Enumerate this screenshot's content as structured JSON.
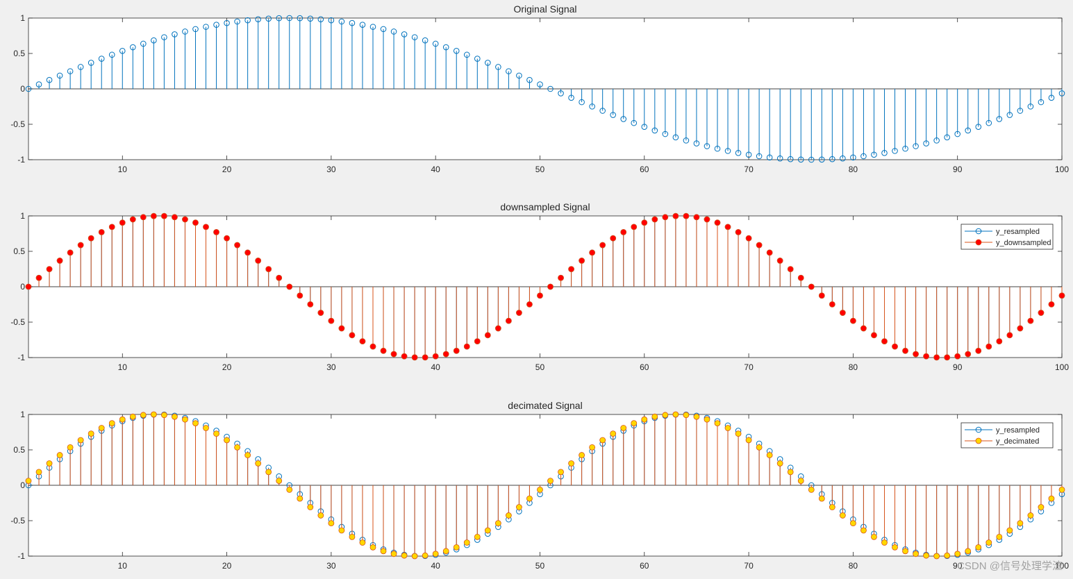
{
  "figure": {
    "background": "#f0f0f0",
    "axes_color": "#262626",
    "watermark": "CSDN @信号处理学渣"
  },
  "colors": {
    "blue": "#0072bd",
    "orange": "#d95319",
    "red": "#ff0000",
    "yellow": "#ffd700"
  },
  "chart_data": [
    {
      "type": "stem",
      "title": "Original Signal",
      "xlim": [
        1,
        100
      ],
      "ylim": [
        -1,
        1
      ],
      "xticks": [
        10,
        20,
        30,
        40,
        50,
        60,
        70,
        80,
        90,
        100
      ],
      "yticks": [
        1,
        0.5,
        0,
        -0.5,
        -1
      ],
      "x": "1..100",
      "series": [
        {
          "values_formula": "sin(2*pi*(n-1)/100), n = 1..100",
          "values_first_10": [
            0,
            0.063,
            0.125,
            0.187,
            0.249,
            0.309,
            0.368,
            0.426,
            0.482,
            0.536
          ],
          "marker": "open-circle",
          "color": "blue"
        }
      ],
      "legend": null
    },
    {
      "type": "stem",
      "title": "downsampled Signal",
      "xlim": [
        1,
        100
      ],
      "ylim": [
        -1,
        1
      ],
      "xticks": [
        10,
        20,
        30,
        40,
        50,
        60,
        70,
        80,
        90,
        100
      ],
      "yticks": [
        1,
        0.5,
        0,
        -0.5,
        -1
      ],
      "x": "1..100",
      "series": [
        {
          "name": "y_resampled",
          "values_formula": "sin(2*pi*(n-1)/50), n = 1..100",
          "marker": "open-circle",
          "color": "blue"
        },
        {
          "name": "y_downsampled",
          "values_formula": "sin(2*pi*(n-1)/50), n = 1..100",
          "marker": "filled-circle",
          "color": "orange",
          "fill": "red"
        }
      ],
      "legend": {
        "position": "top-right",
        "entries": [
          "y_resampled",
          "y_downsampled"
        ]
      }
    },
    {
      "type": "stem",
      "title": "decimated Signal",
      "xlim": [
        1,
        100
      ],
      "ylim": [
        -1,
        1
      ],
      "xticks": [
        10,
        20,
        30,
        40,
        50,
        60,
        70,
        80,
        90,
        100
      ],
      "yticks": [
        1,
        0.5,
        0,
        -0.5,
        -1
      ],
      "x": "1..100",
      "series": [
        {
          "name": "y_resampled",
          "values_formula": "sin(2*pi*(n-1)/50), n = 1..100",
          "marker": "open-circle",
          "color": "blue"
        },
        {
          "name": "y_decimated",
          "values_formula": "sin(2*pi*(n-0.5)/50), n = 1..100",
          "marker": "filled-circle",
          "color": "orange",
          "fill": "yellow"
        }
      ],
      "legend": {
        "position": "top-right",
        "entries": [
          "y_resampled",
          "y_decimated"
        ]
      }
    }
  ]
}
